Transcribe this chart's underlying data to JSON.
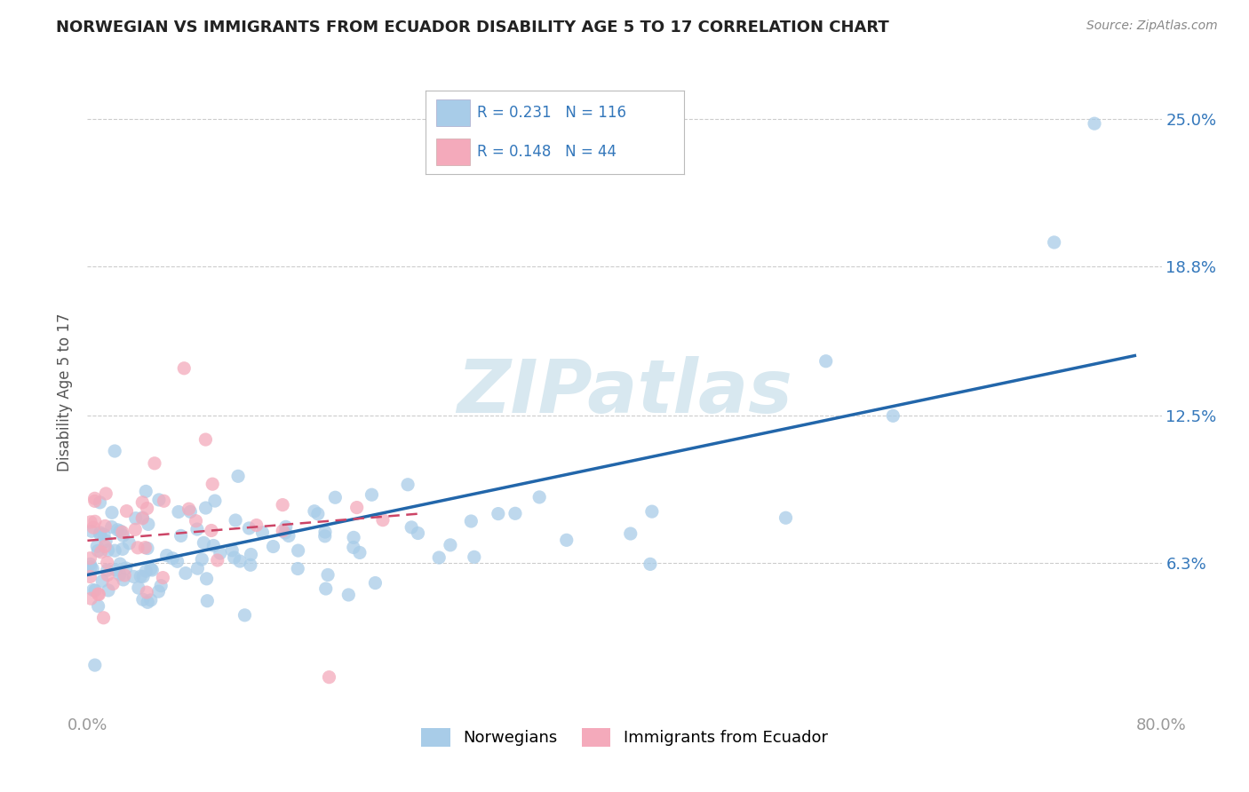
{
  "title": "NORWEGIAN VS IMMIGRANTS FROM ECUADOR DISABILITY AGE 5 TO 17 CORRELATION CHART",
  "source": "Source: ZipAtlas.com",
  "ylabel": "Disability Age 5 to 17",
  "xlim": [
    0.0,
    0.8
  ],
  "ylim": [
    0.0,
    0.27
  ],
  "xtick_labels": [
    "0.0%",
    "80.0%"
  ],
  "ytick_labels_right": [
    "25.0%",
    "18.8%",
    "12.5%",
    "6.3%"
  ],
  "ytick_values": [
    0.25,
    0.188,
    0.125,
    0.063
  ],
  "legend_r1": "R = 0.231",
  "legend_n1": "N = 116",
  "legend_r2": "R = 0.148",
  "legend_n2": "N = 44",
  "blue_color": "#A8CCE8",
  "pink_color": "#F4AABB",
  "blue_line_color": "#2266AA",
  "pink_line_color": "#CC4466",
  "watermark_color": "#D8E8F0",
  "background_color": "#FFFFFF",
  "grid_color": "#CCCCCC",
  "title_color": "#222222",
  "axis_color": "#999999",
  "right_label_color": "#3377BB",
  "scatter_alpha": 0.75,
  "scatter_size": 120
}
